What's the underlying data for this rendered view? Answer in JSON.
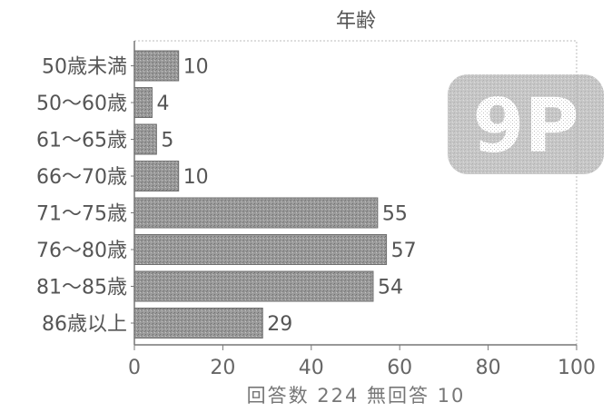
{
  "chart_data": {
    "type": "bar",
    "orientation": "horizontal",
    "title": "年齢",
    "categories": [
      "50歳未満",
      "50～60歳",
      "61～65歳",
      "66～70歳",
      "71～75歳",
      "76～80歳",
      "81～85歳",
      "86歳以上"
    ],
    "values": [
      10,
      4,
      5,
      10,
      55,
      57,
      54,
      29
    ],
    "xlim": [
      0,
      100
    ],
    "xticks": [
      0,
      20,
      40,
      60,
      80,
      100
    ],
    "footer": "回答数 224  無回答 10",
    "badge": "9P",
    "grid": false,
    "legend": "none",
    "colors": {
      "bar": "#8f8f8f",
      "text": "#555555",
      "axis": "#666666"
    }
  }
}
